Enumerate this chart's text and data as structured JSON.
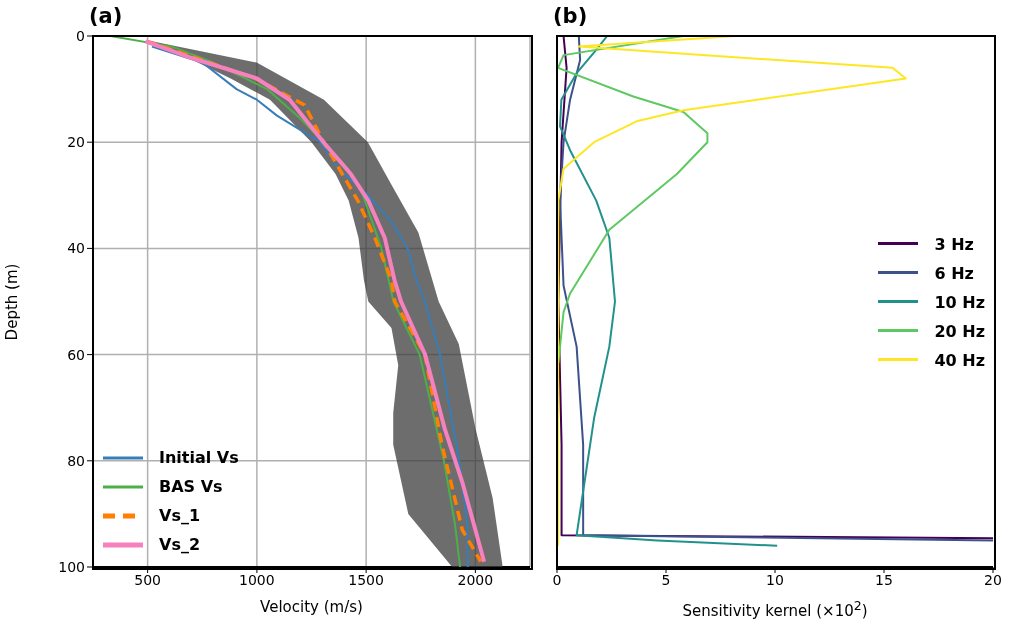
{
  "chart_data": [
    {
      "type": "line",
      "title": "(a)",
      "xlabel": "Velocity (m/s)",
      "ylabel": "Depth (m)",
      "xlim": [
        250,
        2250
      ],
      "xticks": [
        500,
        1000,
        1500,
        2000
      ],
      "ylim": [
        100,
        0
      ],
      "yticks": [
        0,
        20,
        40,
        60,
        80,
        100
      ],
      "grid": true,
      "legend": "bottom left",
      "series": [
        {
          "type": "area",
          "color": "#3c3c3c",
          "x": [
            470,
            680,
            880,
            1060,
            1250,
            1360,
            1420,
            1465,
            1490,
            1510,
            1616,
            1647,
            1624,
            1624,
            1693,
            1894,
            2125,
            2079,
            2001,
            1924,
            1832,
            1739,
            1616,
            1508,
            1307,
            999,
            520
          ],
          "values": [
            1,
            4,
            8,
            12,
            20,
            26,
            31,
            38,
            46,
            50,
            55,
            62,
            71,
            77,
            90,
            100,
            100,
            87,
            74,
            58,
            50,
            37,
            28,
            20,
            12,
            5,
            1
          ]
        },
        {
          "name": "Initial Vs",
          "color": "#377eb8",
          "line_style": "solid",
          "x": [
            520,
            750,
            907,
            1000,
            1092,
            1290,
            1375,
            1509,
            1616,
            1690,
            1731,
            1769,
            1838,
            1926,
            1963,
            1965
          ],
          "values": [
            2,
            5,
            10,
            12,
            15,
            20,
            25,
            30,
            35,
            40,
            46,
            50,
            60,
            80,
            92,
            100
          ]
        },
        {
          "name": "BAS Vs",
          "color": "#4daf4a",
          "line_style": "solid",
          "x": [
            330,
            611,
            800,
            1046,
            1185,
            1306,
            1416,
            1486,
            1570,
            1625,
            1745,
            1856,
            1907,
            1930
          ],
          "values": [
            0,
            2,
            5,
            10,
            15,
            20,
            25,
            30,
            40,
            50,
            60,
            80,
            92,
            100
          ]
        },
        {
          "name": "Vs_1",
          "color": "#ff7f00",
          "line_style": "dashed",
          "x": [
            500,
            993,
            1218,
            1306,
            1462,
            1540,
            1616,
            1631,
            1769,
            1847,
            1940,
            2025
          ],
          "values": [
            1,
            8,
            13,
            20,
            31,
            38,
            46,
            50,
            60,
            77,
            93,
            99
          ]
        },
        {
          "name": "Vs_2",
          "color": "#f781bf",
          "line_style": "solid",
          "x": [
            490,
            690,
            1000,
            1150,
            1305,
            1430,
            1510,
            1585,
            1630,
            1660,
            1770,
            1860,
            1940,
            2040
          ],
          "values": [
            1,
            4,
            8,
            12,
            20,
            26,
            31,
            38,
            46,
            50,
            60,
            74,
            84,
            99
          ]
        }
      ]
    },
    {
      "type": "line",
      "title": "(b)",
      "xlabel": "Sensitivity kernel (×10$^{2}$)",
      "xlim": [
        0,
        20
      ],
      "xticks": [
        0,
        5,
        10,
        15,
        20
      ],
      "ylim": [
        100,
        0
      ],
      "yticks": [
        0,
        20,
        40,
        60,
        80,
        100
      ],
      "tick_labels": "x",
      "legend": "right",
      "series": [
        {
          "name": "3 Hz",
          "color": "#440154",
          "x": [
            0.3,
            0.44,
            0.21,
            0.06,
            0.21,
            0.21,
            20
          ],
          "values": [
            0,
            6,
            20,
            50,
            77,
            94,
            94.6
          ]
        },
        {
          "name": "6 Hz",
          "color": "#3b528b",
          "x": [
            1.0,
            1.06,
            0.6,
            0.3,
            0.14,
            0.3,
            0.9,
            1.2,
            1.2,
            20
          ],
          "values": [
            0,
            4.5,
            12,
            20,
            31,
            47,
            58.5,
            77,
            94,
            95
          ]
        },
        {
          "name": "10 Hz",
          "color": "#21918c",
          "x": [
            2.3,
            1.8,
            0.9,
            0.2,
            0.14,
            0.6,
            1.8,
            2.4,
            2.66,
            2.4,
            1.7,
            0.9,
            4.6,
            10.1
          ],
          "values": [
            0,
            2.6,
            7,
            12,
            17,
            21.5,
            31,
            38,
            50,
            58.5,
            72,
            94,
            95,
            96
          ]
        },
        {
          "name": "20 Hz",
          "color": "#5ec962",
          "x": [
            5.8,
            0.3,
            0.05,
            3.5,
            5.8,
            6.9,
            6.9,
            5.5,
            2.4,
            0.6,
            0.3,
            0.06
          ],
          "values": [
            0,
            3.6,
            6,
            11.4,
            14.3,
            18.3,
            20,
            26,
            36.5,
            48.5,
            52,
            61.6
          ]
        },
        {
          "name": "40 Hz",
          "color": "#fde725",
          "x": [
            8.2,
            1.0,
            15.4,
            16.0,
            5.8,
            3.7,
            1.7,
            0.3,
            0.06,
            0.05,
            0.05
          ],
          "values": [
            0,
            2,
            6,
            8,
            14,
            16,
            20,
            25,
            31,
            60,
            96
          ]
        }
      ]
    }
  ]
}
